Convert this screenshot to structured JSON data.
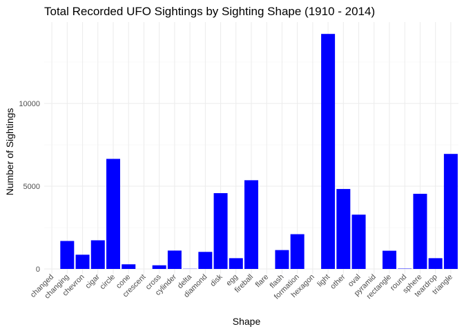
{
  "chart_data": {
    "type": "bar",
    "title": "Total Recorded UFO Sightings by Sighting Shape (1910 - 2014)",
    "xlabel": "Shape",
    "ylabel": "Number of Sightings",
    "categories": [
      "changed",
      "changing",
      "chevron",
      "cigar",
      "circle",
      "cone",
      "crescent",
      "cross",
      "cylinder",
      "delta",
      "diamond",
      "disk",
      "egg",
      "fireball",
      "flare",
      "flash",
      "formation",
      "hexagon",
      "light",
      "other",
      "oval",
      "pyramid",
      "rectangle",
      "round",
      "sphere",
      "teardrop",
      "triangle"
    ],
    "values": [
      0,
      1690,
      860,
      1730,
      6650,
      280,
      0,
      220,
      1110,
      10,
      1030,
      4580,
      650,
      5360,
      0,
      1140,
      2100,
      0,
      14200,
      4830,
      3280,
      0,
      1100,
      20,
      4540,
      650,
      6950
    ],
    "ylim": [
      0,
      14500
    ],
    "yticks": [
      0,
      5000,
      10000
    ],
    "grid": true,
    "legend": "none",
    "bar_color": "#0000ff"
  }
}
